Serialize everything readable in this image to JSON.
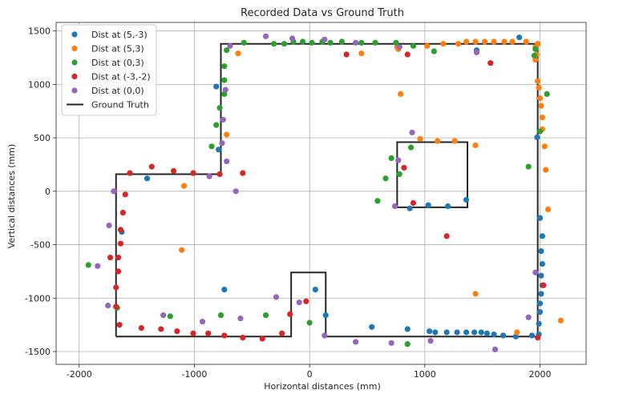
{
  "chart_data": {
    "type": "scatter",
    "title": "Recorded Data vs Ground Truth",
    "xlabel": "Horizontal distances (mm)",
    "ylabel": "Vertical distances (mm)",
    "xlim": [
      -2200,
      2400
    ],
    "ylim": [
      -1620,
      1580
    ],
    "xticks": [
      -2000,
      -1000,
      0,
      1000,
      2000
    ],
    "yticks": [
      -1500,
      -1000,
      -500,
      0,
      500,
      1000,
      1500
    ],
    "grid": true,
    "legend_position": "top-left",
    "series": [
      {
        "name": "Dist at (5,-3)",
        "color": "#1f77b4",
        "points": [
          [
            1820,
            1440
          ],
          [
            1975,
            505
          ],
          [
            2000,
            -250
          ],
          [
            2020,
            -420
          ],
          [
            2010,
            -560
          ],
          [
            2020,
            -680
          ],
          [
            2010,
            -790
          ],
          [
            2020,
            -880
          ],
          [
            2010,
            -960
          ],
          [
            2000,
            -1050
          ],
          [
            2000,
            -1130
          ],
          [
            1990,
            -1240
          ],
          [
            1990,
            -1340
          ],
          [
            1930,
            -1350
          ],
          [
            1790,
            -1360
          ],
          [
            1680,
            -1350
          ],
          [
            1600,
            -1340
          ],
          [
            1540,
            -1330
          ],
          [
            1490,
            -1320
          ],
          [
            1430,
            -1320
          ],
          [
            1360,
            -1320
          ],
          [
            1280,
            -1320
          ],
          [
            1190,
            -1320
          ],
          [
            1090,
            -1320
          ],
          [
            1040,
            -1310
          ],
          [
            850,
            -1290
          ],
          [
            540,
            -1270
          ],
          [
            140,
            -1160
          ],
          [
            50,
            -920
          ],
          [
            -740,
            -920
          ],
          [
            -1630,
            -380
          ],
          [
            -1410,
            120
          ],
          [
            -790,
            390
          ],
          [
            -810,
            980
          ],
          [
            1360,
            -80
          ],
          [
            1200,
            -140
          ],
          [
            1030,
            -130
          ],
          [
            870,
            -160
          ],
          [
            1450,
            1320
          ]
        ]
      },
      {
        "name": "Dist at (5,3)",
        "color": "#ff7f0e",
        "points": [
          [
            1980,
            1380
          ],
          [
            1960,
            1350
          ],
          [
            1970,
            1280
          ],
          [
            1960,
            1230
          ],
          [
            1980,
            1030
          ],
          [
            1990,
            970
          ],
          [
            2000,
            870
          ],
          [
            2010,
            800
          ],
          [
            2020,
            690
          ],
          [
            2020,
            580
          ],
          [
            2040,
            420
          ],
          [
            2050,
            200
          ],
          [
            2070,
            -170
          ],
          [
            2180,
            -1210
          ],
          [
            1440,
            -960
          ],
          [
            1800,
            -1320
          ],
          [
            1880,
            1400
          ],
          [
            1760,
            1400
          ],
          [
            1690,
            1400
          ],
          [
            1600,
            1400
          ],
          [
            1520,
            1400
          ],
          [
            1440,
            1400
          ],
          [
            1360,
            1400
          ],
          [
            1290,
            1380
          ],
          [
            1160,
            1380
          ],
          [
            1020,
            1360
          ],
          [
            760,
            1350
          ],
          [
            450,
            1290
          ],
          [
            790,
            910
          ],
          [
            960,
            490
          ],
          [
            1110,
            470
          ],
          [
            1260,
            470
          ],
          [
            1440,
            430
          ],
          [
            -1090,
            50
          ],
          [
            -1110,
            -550
          ],
          [
            -720,
            530
          ],
          [
            -620,
            1290
          ],
          [
            770,
            1330
          ]
        ]
      },
      {
        "name": "Dist at (0,3)",
        "color": "#2ca02c",
        "points": [
          [
            -1670,
            -1090
          ],
          [
            -1920,
            -690
          ],
          [
            -1210,
            -1170
          ],
          [
            -770,
            -1160
          ],
          [
            -380,
            -1160
          ],
          [
            0,
            -1230
          ],
          [
            850,
            -1430
          ],
          [
            2060,
            910
          ],
          [
            1900,
            230
          ],
          [
            2000,
            560
          ],
          [
            1950,
            1270
          ],
          [
            1960,
            1330
          ],
          [
            1080,
            1310
          ],
          [
            900,
            1360
          ],
          [
            750,
            1390
          ],
          [
            570,
            1390
          ],
          [
            450,
            1390
          ],
          [
            280,
            1400
          ],
          [
            180,
            1390
          ],
          [
            110,
            1400
          ],
          [
            20,
            1390
          ],
          [
            -60,
            1400
          ],
          [
            -140,
            1400
          ],
          [
            -220,
            1380
          ],
          [
            -310,
            1380
          ],
          [
            -570,
            1390
          ],
          [
            -720,
            1320
          ],
          [
            -740,
            1170
          ],
          [
            -740,
            1040
          ],
          [
            -740,
            910
          ],
          [
            -780,
            780
          ],
          [
            -810,
            620
          ],
          [
            -850,
            420
          ],
          [
            880,
            410
          ],
          [
            710,
            310
          ],
          [
            780,
            160
          ],
          [
            660,
            120
          ],
          [
            590,
            -90
          ]
        ]
      },
      {
        "name": "Dist at (-3,-2)",
        "color": "#d62728",
        "points": [
          [
            -1680,
            -1080
          ],
          [
            -1650,
            -1250
          ],
          [
            -1460,
            -1280
          ],
          [
            -1290,
            -1290
          ],
          [
            -1150,
            -1310
          ],
          [
            -1010,
            -1330
          ],
          [
            -880,
            -1330
          ],
          [
            -740,
            -1350
          ],
          [
            -580,
            -1370
          ],
          [
            -410,
            -1380
          ],
          [
            -240,
            -1330
          ],
          [
            -170,
            -1150
          ],
          [
            -30,
            -1030
          ],
          [
            -1680,
            -900
          ],
          [
            -1660,
            -750
          ],
          [
            -1660,
            -620
          ],
          [
            -1640,
            -490
          ],
          [
            -1640,
            -360
          ],
          [
            -1620,
            -200
          ],
          [
            -1600,
            -30
          ],
          [
            -1560,
            170
          ],
          [
            -1370,
            230
          ],
          [
            -1180,
            190
          ],
          [
            -1010,
            170
          ],
          [
            -780,
            160
          ],
          [
            -580,
            170
          ],
          [
            -1730,
            -620
          ],
          [
            320,
            1280
          ],
          [
            850,
            1280
          ],
          [
            1570,
            1200
          ],
          [
            820,
            220
          ],
          [
            900,
            -110
          ],
          [
            1190,
            -420
          ],
          [
            2030,
            -880
          ],
          [
            1980,
            -1370
          ]
        ]
      },
      {
        "name": "Dist at (0,0)",
        "color": "#9467bd",
        "points": [
          [
            -1840,
            -700
          ],
          [
            -1750,
            -1070
          ],
          [
            -1740,
            -320
          ],
          [
            -1700,
            0
          ],
          [
            -1270,
            -1160
          ],
          [
            -930,
            -1220
          ],
          [
            -600,
            -1190
          ],
          [
            -290,
            -990
          ],
          [
            -90,
            -1040
          ],
          [
            130,
            -1350
          ],
          [
            400,
            -1410
          ],
          [
            710,
            -1420
          ],
          [
            1050,
            -1400
          ],
          [
            1610,
            -1480
          ],
          [
            1900,
            -1180
          ],
          [
            1960,
            -760
          ],
          [
            -760,
            450
          ],
          [
            -750,
            670
          ],
          [
            -730,
            950
          ],
          [
            -640,
            0
          ],
          [
            -720,
            280
          ],
          [
            -380,
            1450
          ],
          [
            -150,
            1430
          ],
          [
            130,
            1420
          ],
          [
            400,
            1390
          ],
          [
            780,
            1350
          ],
          [
            890,
            550
          ],
          [
            770,
            290
          ],
          [
            1450,
            1300
          ],
          [
            -870,
            140
          ],
          [
            -690,
            1360
          ],
          [
            740,
            -140
          ]
        ]
      }
    ],
    "ground_truth": {
      "name": "Ground Truth",
      "color": "#262626",
      "segments": [
        [
          [
            -1680,
            -1360
          ],
          [
            -1680,
            160
          ],
          [
            -770,
            160
          ],
          [
            -770,
            1380
          ],
          [
            1980,
            1380
          ],
          [
            1980,
            -1360
          ],
          [
            140,
            -1360
          ],
          [
            140,
            -760
          ],
          [
            -160,
            -760
          ],
          [
            -160,
            -1360
          ],
          [
            -1680,
            -1360
          ]
        ],
        [
          [
            760,
            -150
          ],
          [
            1370,
            -150
          ],
          [
            1370,
            460
          ],
          [
            760,
            460
          ],
          [
            760,
            -150
          ]
        ]
      ]
    }
  }
}
